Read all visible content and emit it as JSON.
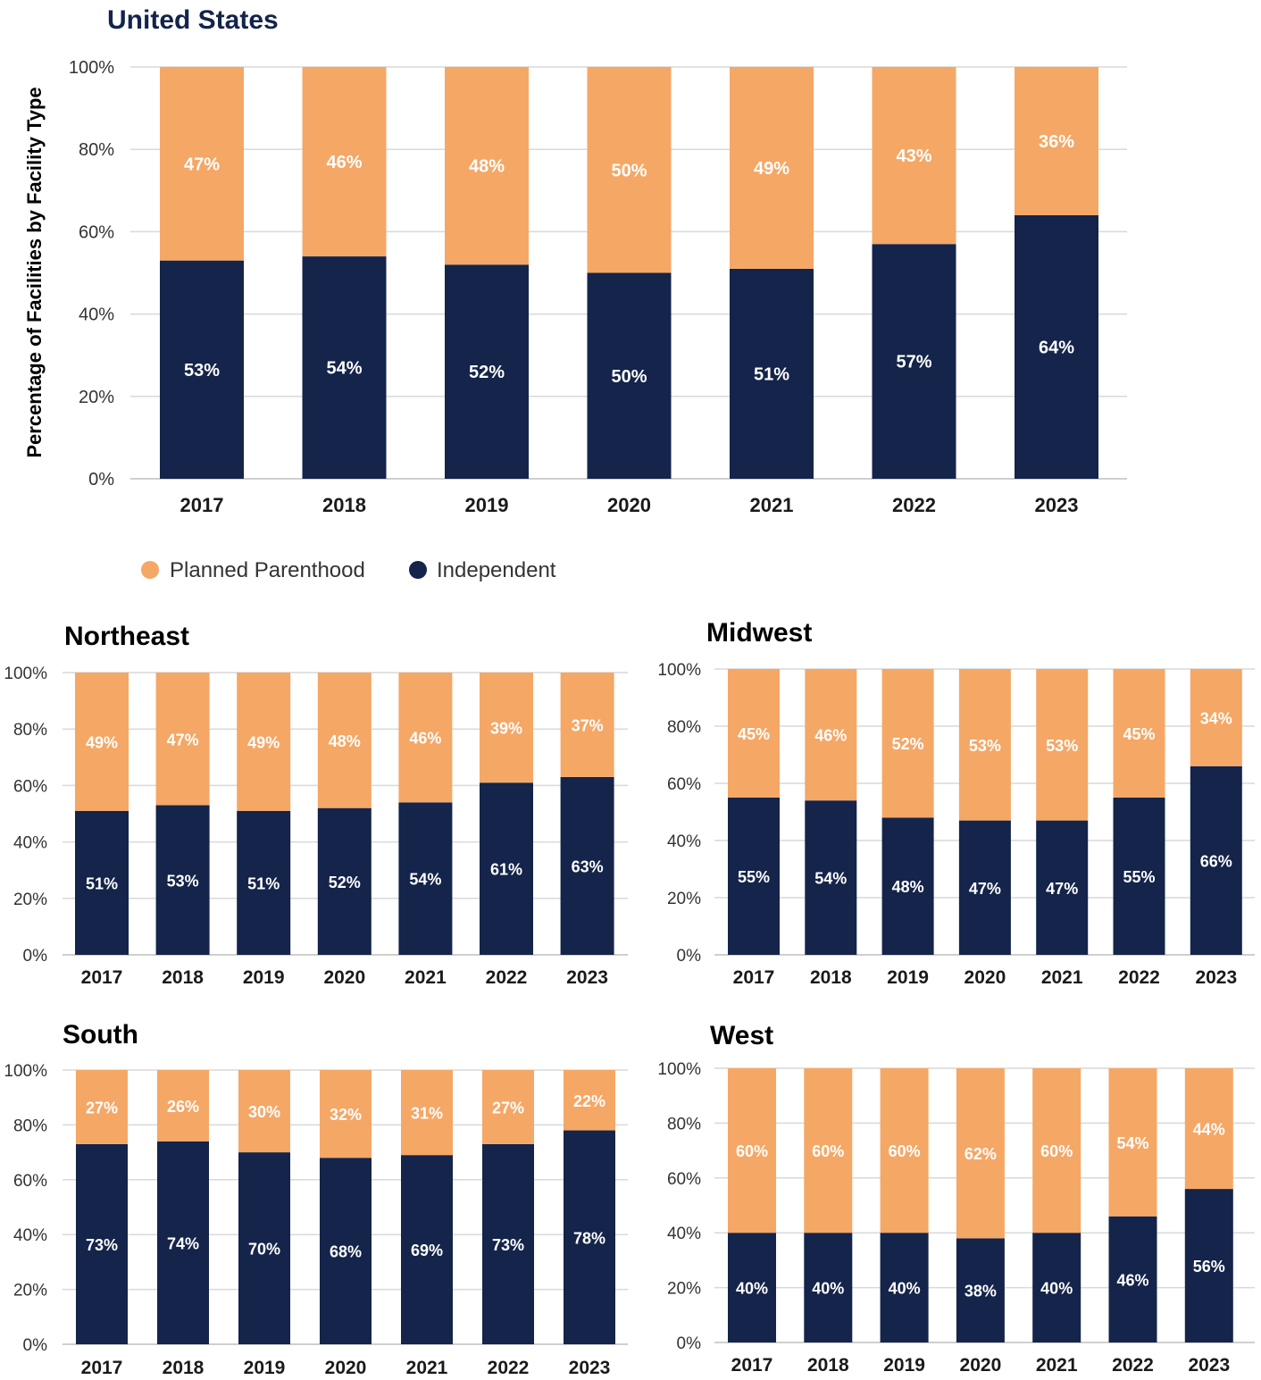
{
  "colors": {
    "planned_parenthood": "#f5a766",
    "independent": "#14244a"
  },
  "legend": {
    "items": [
      {
        "label": "Planned Parenthood",
        "color": "#f5a766"
      },
      {
        "label": "Independent",
        "color": "#14244a"
      }
    ]
  },
  "chart_data": [
    {
      "type": "bar",
      "stacked": true,
      "title": "United States",
      "ylabel": "Percentage of Facilities by Facility Type",
      "ylim": [
        0,
        100
      ],
      "yticks": [
        "0%",
        "20%",
        "40%",
        "60%",
        "80%",
        "100%"
      ],
      "categories": [
        "2017",
        "2018",
        "2019",
        "2020",
        "2021",
        "2022",
        "2023"
      ],
      "series": [
        {
          "name": "Independent",
          "values": [
            53,
            54,
            52,
            50,
            51,
            57,
            64
          ]
        },
        {
          "name": "Planned Parenthood",
          "values": [
            47,
            46,
            48,
            50,
            49,
            43,
            36
          ]
        }
      ]
    },
    {
      "type": "bar",
      "stacked": true,
      "title": "Northeast",
      "ylabel": "",
      "ylim": [
        0,
        100
      ],
      "yticks": [
        "0%",
        "20%",
        "40%",
        "60%",
        "80%",
        "100%"
      ],
      "categories": [
        "2017",
        "2018",
        "2019",
        "2020",
        "2021",
        "2022",
        "2023"
      ],
      "series": [
        {
          "name": "Independent",
          "values": [
            51,
            53,
            51,
            52,
            54,
            61,
            63
          ]
        },
        {
          "name": "Planned Parenthood",
          "values": [
            49,
            47,
            49,
            48,
            46,
            39,
            37
          ]
        }
      ]
    },
    {
      "type": "bar",
      "stacked": true,
      "title": "Midwest",
      "ylabel": "",
      "ylim": [
        0,
        100
      ],
      "yticks": [
        "0%",
        "20%",
        "40%",
        "60%",
        "80%",
        "100%"
      ],
      "categories": [
        "2017",
        "2018",
        "2019",
        "2020",
        "2021",
        "2022",
        "2023"
      ],
      "series": [
        {
          "name": "Independent",
          "values": [
            55,
            54,
            48,
            47,
            47,
            55,
            66
          ]
        },
        {
          "name": "Planned Parenthood",
          "values": [
            45,
            46,
            52,
            53,
            53,
            45,
            34
          ]
        }
      ]
    },
    {
      "type": "bar",
      "stacked": true,
      "title": "South",
      "ylabel": "",
      "ylim": [
        0,
        100
      ],
      "yticks": [
        "0%",
        "20%",
        "40%",
        "60%",
        "80%",
        "100%"
      ],
      "categories": [
        "2017",
        "2018",
        "2019",
        "2020",
        "2021",
        "2022",
        "2023"
      ],
      "series": [
        {
          "name": "Independent",
          "values": [
            73,
            74,
            70,
            68,
            69,
            73,
            78
          ]
        },
        {
          "name": "Planned Parenthood",
          "values": [
            27,
            26,
            30,
            32,
            31,
            27,
            22
          ]
        }
      ]
    },
    {
      "type": "bar",
      "stacked": true,
      "title": "West",
      "ylabel": "",
      "ylim": [
        0,
        100
      ],
      "yticks": [
        "0%",
        "20%",
        "40%",
        "60%",
        "80%",
        "100%"
      ],
      "categories": [
        "2017",
        "2018",
        "2019",
        "2020",
        "2021",
        "2022",
        "2023"
      ],
      "series": [
        {
          "name": "Independent",
          "values": [
            40,
            40,
            40,
            38,
            40,
            46,
            56
          ]
        },
        {
          "name": "Planned Parenthood",
          "values": [
            60,
            60,
            60,
            62,
            60,
            54,
            44
          ]
        }
      ]
    }
  ]
}
